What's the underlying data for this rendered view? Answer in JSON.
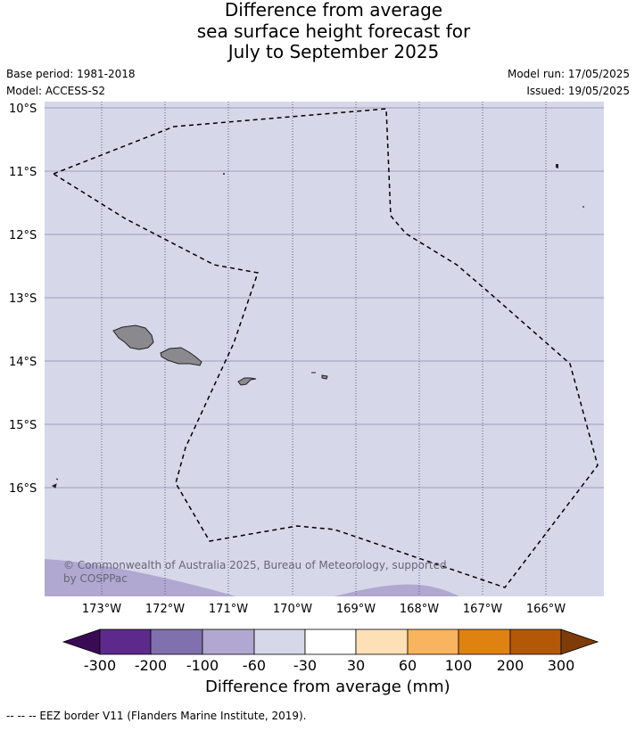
{
  "title_lines": [
    "Difference from average",
    "sea surface height forecast for",
    "July to September 2025"
  ],
  "meta": {
    "base_period": "Base period: 1981-2018",
    "model": "Model: ACCESS-S2",
    "model_run": "Model run: 17/05/2025",
    "issued": "Issued: 19/05/2025"
  },
  "map": {
    "lat_labels": [
      "10°S",
      "11°S",
      "12°S",
      "13°S",
      "14°S",
      "15°S",
      "16°S"
    ],
    "lon_labels": [
      "173°W",
      "172°W",
      "171°W",
      "170°W",
      "169°W",
      "168°W",
      "167°W",
      "166°W"
    ],
    "copyright": "© Commonwealth of Australia 2025, Bureau of Meteorology, supported by COSPPac",
    "background_color": "#d7d7ea",
    "land_color": "#8a8a8e",
    "grid_color": "#8888aa"
  },
  "colorbar": {
    "title": "Difference from average (mm)",
    "tick_labels": [
      "-300",
      "-200",
      "-100",
      "-60",
      "-30",
      "30",
      "60",
      "100",
      "200",
      "300"
    ],
    "colors": [
      "#3b0a55",
      "#5d2a8c",
      "#8070ad",
      "#b0a8d0",
      "#d7d7ea",
      "#ffffff",
      "#fde0b6",
      "#f8b45e",
      "#e08212",
      "#b35807",
      "#7f3b08"
    ]
  },
  "footer": "--  --  -- EEZ border V11 (Flanders Marine Institute, 2019)."
}
